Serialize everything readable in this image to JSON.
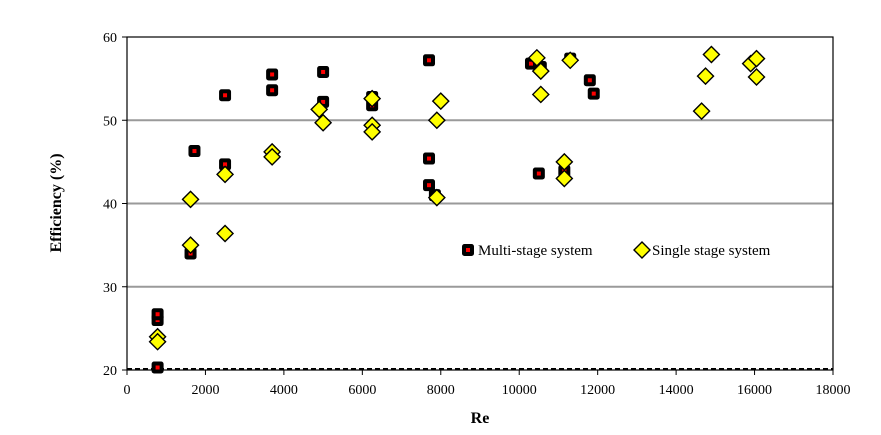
{
  "chart_data": {
    "type": "scatter",
    "title": "",
    "xlabel": "Re",
    "ylabel": "Efficiency (%)",
    "xlim": [
      0,
      18000
    ],
    "ylim": [
      20,
      60
    ],
    "x_ticks": [
      0,
      2000,
      4000,
      6000,
      8000,
      10000,
      12000,
      14000,
      16000,
      18000
    ],
    "y_ticks": [
      20,
      30,
      40,
      50,
      60
    ],
    "grid": "horizontal",
    "legend_position": "right-middle",
    "series": [
      {
        "name": "Multi-stage system",
        "marker": "square",
        "fill": "#000000",
        "center": "#ff0000",
        "points": [
          [
            780,
            20.3
          ],
          [
            780,
            26.0
          ],
          [
            780,
            26.7
          ],
          [
            1620,
            34.0
          ],
          [
            1720,
            46.3
          ],
          [
            2500,
            53.0
          ],
          [
            2500,
            44.7
          ],
          [
            3700,
            55.5
          ],
          [
            3700,
            53.6
          ],
          [
            5000,
            52.2
          ],
          [
            5000,
            55.8
          ],
          [
            6250,
            52.8
          ],
          [
            6250,
            51.8
          ],
          [
            7700,
            57.2
          ],
          [
            7700,
            45.4
          ],
          [
            7700,
            42.2
          ],
          [
            7850,
            41.0
          ],
          [
            10300,
            56.8
          ],
          [
            10500,
            43.6
          ],
          [
            10550,
            56.4
          ],
          [
            11150,
            43.9
          ],
          [
            11300,
            57.4
          ],
          [
            11800,
            54.8
          ],
          [
            11900,
            53.2
          ]
        ]
      },
      {
        "name": "Single stage system",
        "marker": "diamond",
        "fill": "#ffff00",
        "points": [
          [
            780,
            24.0
          ],
          [
            780,
            23.4
          ],
          [
            1620,
            40.5
          ],
          [
            1620,
            35.0
          ],
          [
            2500,
            43.5
          ],
          [
            2500,
            36.4
          ],
          [
            3700,
            46.2
          ],
          [
            3700,
            45.6
          ],
          [
            4900,
            51.3
          ],
          [
            5000,
            49.7
          ],
          [
            6250,
            52.6
          ],
          [
            6250,
            49.4
          ],
          [
            6250,
            48.6
          ],
          [
            7900,
            50.0
          ],
          [
            8000,
            52.3
          ],
          [
            7900,
            40.7
          ],
          [
            10450,
            57.5
          ],
          [
            10550,
            55.9
          ],
          [
            10550,
            53.1
          ],
          [
            11150,
            45.0
          ],
          [
            11150,
            43.0
          ],
          [
            11300,
            57.2
          ],
          [
            14650,
            51.1
          ],
          [
            14750,
            55.3
          ],
          [
            14900,
            57.9
          ],
          [
            15900,
            56.8
          ],
          [
            16050,
            57.4
          ],
          [
            16050,
            55.2
          ]
        ]
      }
    ]
  }
}
